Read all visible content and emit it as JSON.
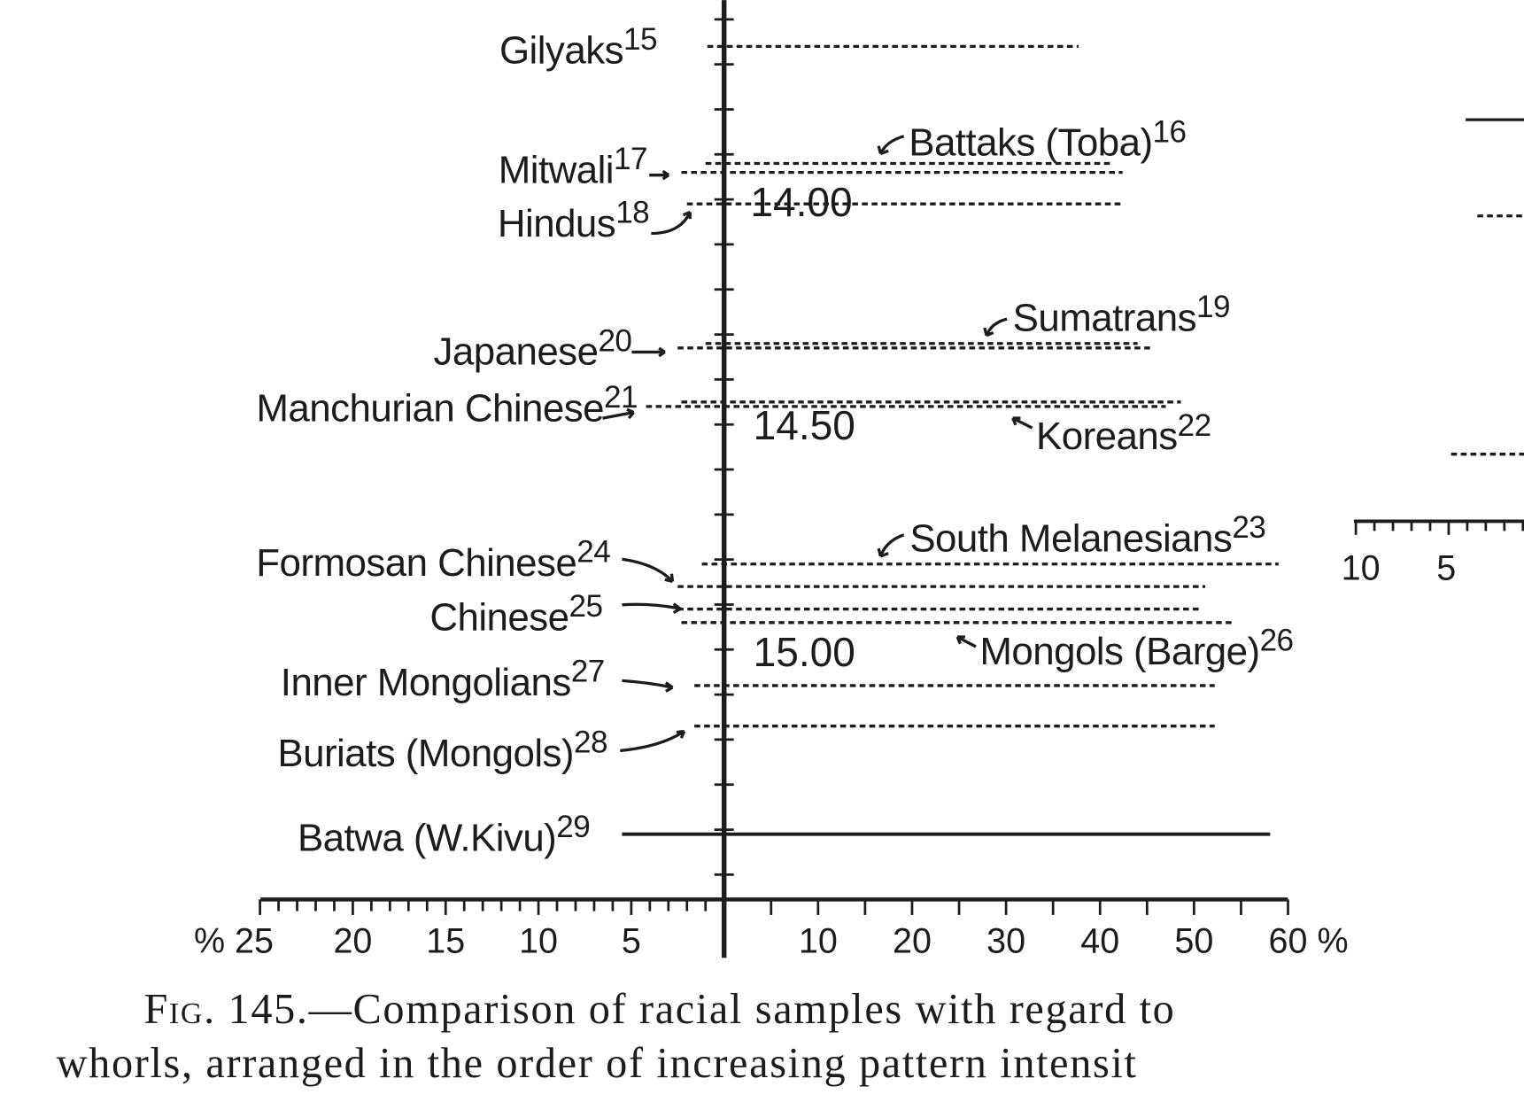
{
  "chart_data": [
    {
      "type": "bar",
      "orientation": "horizontal-bidirectional",
      "xlabel_left_unit": "%",
      "xlabel_right_unit": "%",
      "left_xlim": [
        0,
        25
      ],
      "right_xlim": [
        0,
        60
      ],
      "left_ticks": [
        "% 25",
        "20",
        "15",
        "10",
        "5"
      ],
      "left_tick_values": [
        25,
        20,
        15,
        10,
        5
      ],
      "right_ticks": [
        "10",
        "20",
        "30",
        "40",
        "50",
        "60 %"
      ],
      "right_tick_values": [
        10,
        20,
        30,
        40,
        50,
        60
      ],
      "y_axis_labels": [
        "14.00",
        "14.50",
        "15.00"
      ],
      "y_axis_label_values": [
        14.0,
        14.5,
        15.0
      ],
      "y_range": [
        13.6,
        15.5
      ],
      "y_direction": "increasing-downward",
      "series": [
        {
          "name": "Gilyaks",
          "ref": "15",
          "intensity": 13.66,
          "left_pct": 0.9,
          "right_pct": 37.7,
          "line": "dashed"
        },
        {
          "name": "Battaks (Toba)",
          "ref": "16",
          "intensity": 13.92,
          "left_pct": 1.0,
          "right_pct": 41.4,
          "line": "dashed"
        },
        {
          "name": "Mitwali",
          "ref": "17",
          "intensity": 13.94,
          "left_pct": 2.3,
          "right_pct": 42.4,
          "line": "dashed"
        },
        {
          "name": "Hindus",
          "ref": "18",
          "intensity": 14.01,
          "left_pct": 2.0,
          "right_pct": 42.4,
          "line": "dashed"
        },
        {
          "name": "Sumatrans",
          "ref": "19",
          "intensity": 14.32,
          "left_pct": 1.0,
          "right_pct": 44.0,
          "line": "dashed"
        },
        {
          "name": "Japanese",
          "ref": "20",
          "intensity": 14.33,
          "left_pct": 2.5,
          "right_pct": 45.5,
          "line": "dashed"
        },
        {
          "name": "Manchurian Chinese",
          "ref": "21",
          "intensity": 14.46,
          "left_pct": 4.2,
          "right_pct": 47.0,
          "line": "dashed"
        },
        {
          "name": "Koreans",
          "ref": "22",
          "intensity": 14.45,
          "left_pct": 2.3,
          "right_pct": 48.6,
          "line": "dashed"
        },
        {
          "name": "South Melanesians",
          "ref": "23",
          "intensity": 14.81,
          "left_pct": 1.2,
          "right_pct": 59.0,
          "line": "dashed"
        },
        {
          "name": "Formosan Chinese",
          "ref": "24",
          "intensity": 14.86,
          "left_pct": 2.5,
          "right_pct": 51.2,
          "line": "dashed"
        },
        {
          "name": "Chinese",
          "ref": "25",
          "intensity": 14.91,
          "left_pct": 2.5,
          "right_pct": 50.7,
          "line": "dashed"
        },
        {
          "name": "Mongols (Barge)",
          "ref": "26",
          "intensity": 14.94,
          "left_pct": 2.3,
          "right_pct": 54.3,
          "line": "dashed"
        },
        {
          "name": "Inner Mongolians",
          "ref": "27",
          "intensity": 15.08,
          "left_pct": 1.6,
          "right_pct": 52.2,
          "line": "dashed"
        },
        {
          "name": "Buriats (Mongols)",
          "ref": "28",
          "intensity": 15.17,
          "left_pct": 1.6,
          "right_pct": 52.2,
          "line": "dashed"
        },
        {
          "name": "Batwa (W.Kivu)",
          "ref": "29",
          "intensity": 15.41,
          "left_pct": 5.5,
          "right_pct": 58.1,
          "line": "solid"
        }
      ]
    },
    {
      "type": "bar",
      "note_partial": true,
      "left_ticks": [
        "10",
        "5"
      ]
    }
  ],
  "caption": {
    "fig": "Fig. 145.",
    "line1": "—Comparison of racial samples with regard to",
    "line2": "whorls, arranged in the order of increasing pattern intensit"
  }
}
